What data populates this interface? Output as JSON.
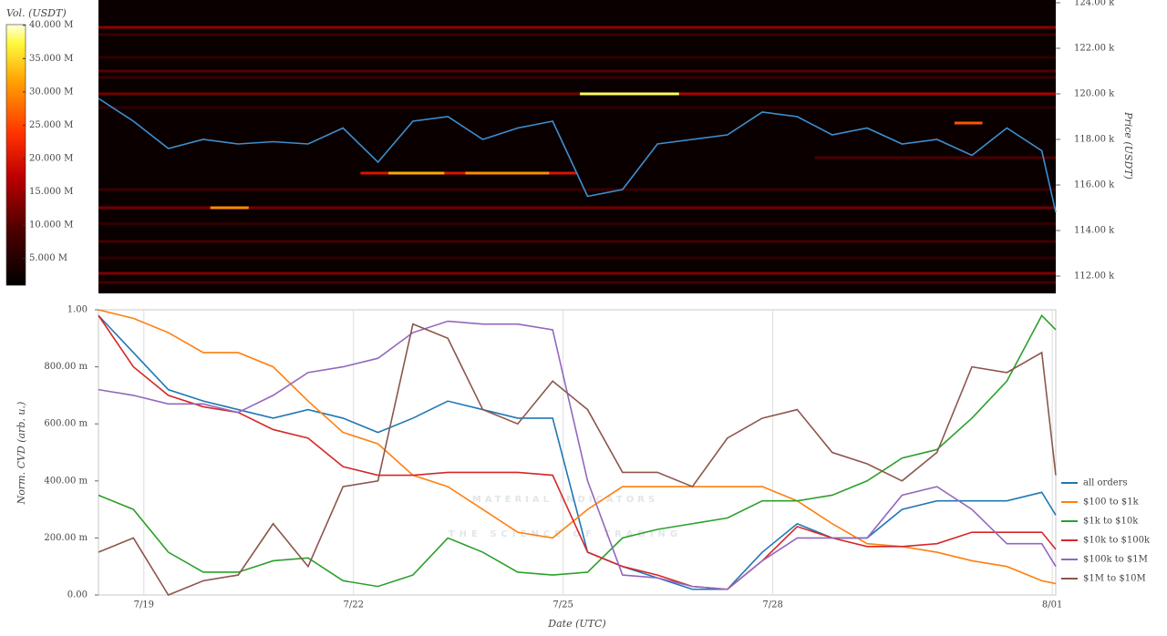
{
  "chart_data": [
    {
      "type": "heatmap",
      "y_label": "Price (USDT)",
      "colorbar_label": "Vol. (USDT)",
      "x": [
        18.35,
        18.85,
        19.35,
        19.85,
        20.35,
        20.85,
        21.35,
        21.85,
        22.35,
        22.85,
        23.35,
        23.85,
        24.35,
        24.85,
        25.35,
        25.85,
        26.35,
        26.85,
        27.35,
        27.85,
        28.35,
        28.85,
        29.35,
        29.85,
        30.35,
        30.85,
        31.35,
        31.85,
        32.05
      ],
      "xlim": [
        18.35,
        32.05
      ],
      "ylim": [
        111240,
        124120
      ],
      "yticks": [
        {
          "value": 112000,
          "label": "112.00 k"
        },
        {
          "value": 114000,
          "label": "114.00 k"
        },
        {
          "value": 116000,
          "label": "116.00 k"
        },
        {
          "value": 118000,
          "label": "118.00 k"
        },
        {
          "value": 120000,
          "label": "120.00 k"
        },
        {
          "value": 122000,
          "label": "122.00 k"
        },
        {
          "value": 124000,
          "label": "124.00 k"
        }
      ],
      "clim": [
        1000000,
        40100000
      ],
      "cticks": [
        {
          "value": 5000000,
          "label": "5.000 M"
        },
        {
          "value": 10000000,
          "label": "10.000 M"
        },
        {
          "value": 15000000,
          "label": "15.000 M"
        },
        {
          "value": 20000000,
          "label": "20.000 M"
        },
        {
          "value": 25000000,
          "label": "25.000 M"
        },
        {
          "value": 30000000,
          "label": "30.000 M"
        },
        {
          "value": 35000000,
          "label": "35.000 M"
        },
        {
          "value": 40000000,
          "label": "40.000 M"
        }
      ],
      "price_line": {
        "color": "#3d8fd1",
        "values": [
          119800,
          118800,
          117600,
          118000,
          117800,
          117900,
          117800,
          118500,
          117000,
          118800,
          119000,
          118000,
          118500,
          118800,
          115500,
          115800,
          117800,
          118000,
          118200,
          119200,
          119000,
          118200,
          118500,
          117800,
          118000,
          117300,
          118500,
          117500,
          114800
        ]
      },
      "bands": [
        {
          "price": 122920,
          "start": 18.35,
          "end": 32.05,
          "volume": 14000000
        },
        {
          "price": 122600,
          "start": 18.35,
          "end": 32.05,
          "volume": 7000000
        },
        {
          "price": 121600,
          "start": 18.35,
          "end": 32.05,
          "volume": 6000000
        },
        {
          "price": 121000,
          "start": 18.35,
          "end": 32.05,
          "volume": 10000000
        },
        {
          "price": 120720,
          "start": 18.35,
          "end": 32.05,
          "volume": 7000000
        },
        {
          "price": 120000,
          "start": 18.35,
          "end": 25.24,
          "volume": 12000000
        },
        {
          "price": 120000,
          "start": 25.24,
          "end": 26.66,
          "volume": 38000000
        },
        {
          "price": 120000,
          "start": 26.66,
          "end": 32.05,
          "volume": 16000000
        },
        {
          "price": 119400,
          "start": 18.35,
          "end": 32.05,
          "volume": 6000000
        },
        {
          "price": 118720,
          "start": 30.6,
          "end": 31.0,
          "volume": 26000000
        },
        {
          "price": 117200,
          "start": 28.6,
          "end": 32.05,
          "volume": 9000000
        },
        {
          "price": 116520,
          "start": 22.1,
          "end": 25.2,
          "volume": 20000000
        },
        {
          "price": 116520,
          "start": 22.5,
          "end": 23.3,
          "volume": 32000000
        },
        {
          "price": 116520,
          "start": 23.6,
          "end": 24.8,
          "volume": 30000000
        },
        {
          "price": 115800,
          "start": 18.35,
          "end": 32.05,
          "volume": 7000000
        },
        {
          "price": 115000,
          "start": 18.35,
          "end": 32.05,
          "volume": 12000000
        },
        {
          "price": 115000,
          "start": 19.95,
          "end": 20.5,
          "volume": 30000000
        },
        {
          "price": 114300,
          "start": 18.35,
          "end": 32.05,
          "volume": 6000000
        },
        {
          "price": 113520,
          "start": 18.35,
          "end": 32.05,
          "volume": 8000000
        },
        {
          "price": 112800,
          "start": 18.35,
          "end": 32.05,
          "volume": 6000000
        },
        {
          "price": 112120,
          "start": 18.35,
          "end": 32.05,
          "volume": 13000000
        },
        {
          "price": 111720,
          "start": 18.35,
          "end": 32.05,
          "volume": 8000000
        }
      ]
    },
    {
      "type": "line",
      "y_label": "Norm. CVD (arb. u.)",
      "x_label": "Date (UTC)",
      "watermark": [
        "MATERIAL INDICATORS",
        "THE SCIENCE OF TRADING"
      ],
      "x": [
        18.35,
        18.85,
        19.35,
        19.85,
        20.35,
        20.85,
        21.35,
        21.85,
        22.35,
        22.85,
        23.35,
        23.85,
        24.35,
        24.85,
        25.35,
        25.85,
        26.35,
        26.85,
        27.35,
        27.85,
        28.35,
        28.85,
        29.35,
        29.85,
        30.35,
        30.85,
        31.35,
        31.85,
        32.05
      ],
      "xlim": [
        18.35,
        32.05
      ],
      "xticks": [
        {
          "value": 19,
          "label": "7/19"
        },
        {
          "value": 22,
          "label": "7/22"
        },
        {
          "value": 25,
          "label": "7/25"
        },
        {
          "value": 28,
          "label": "7/28"
        },
        {
          "value": 32,
          "label": "8/01"
        }
      ],
      "ylim": [
        0,
        1
      ],
      "yticks": [
        {
          "value": 0,
          "label": "0.00"
        },
        {
          "value": 0.2,
          "label": "200.00 m"
        },
        {
          "value": 0.4,
          "label": "400.00 m"
        },
        {
          "value": 0.6,
          "label": "600.00 m"
        },
        {
          "value": 0.8,
          "label": "800.00 m"
        },
        {
          "value": 1,
          "label": "1.00"
        }
      ],
      "grid": true,
      "series": [
        {
          "name": "all orders",
          "color": "#1f77b4",
          "values": [
            0.98,
            0.85,
            0.72,
            0.68,
            0.65,
            0.62,
            0.65,
            0.62,
            0.57,
            0.62,
            0.68,
            0.65,
            0.62,
            0.62,
            0.15,
            0.1,
            0.06,
            0.02,
            0.02,
            0.15,
            0.25,
            0.2,
            0.2,
            0.3,
            0.33,
            0.33,
            0.33,
            0.36,
            0.28
          ]
        },
        {
          "name": "$100 to $1k",
          "color": "#ff7f0e",
          "values": [
            1.0,
            0.97,
            0.92,
            0.85,
            0.85,
            0.8,
            0.68,
            0.57,
            0.53,
            0.42,
            0.38,
            0.3,
            0.22,
            0.2,
            0.3,
            0.38,
            0.38,
            0.38,
            0.38,
            0.38,
            0.33,
            0.25,
            0.18,
            0.17,
            0.15,
            0.12,
            0.1,
            0.05,
            0.04
          ]
        },
        {
          "name": "$1k to $10k",
          "color": "#2ca02c",
          "values": [
            0.35,
            0.3,
            0.15,
            0.08,
            0.08,
            0.12,
            0.13,
            0.05,
            0.03,
            0.07,
            0.2,
            0.15,
            0.08,
            0.07,
            0.08,
            0.2,
            0.23,
            0.25,
            0.27,
            0.33,
            0.33,
            0.35,
            0.4,
            0.48,
            0.51,
            0.62,
            0.75,
            0.98,
            0.93
          ]
        },
        {
          "name": "$10k to $100k",
          "color": "#d62728",
          "values": [
            0.98,
            0.8,
            0.7,
            0.66,
            0.64,
            0.58,
            0.55,
            0.45,
            0.42,
            0.42,
            0.43,
            0.43,
            0.43,
            0.42,
            0.15,
            0.1,
            0.07,
            0.03,
            0.02,
            0.12,
            0.24,
            0.2,
            0.17,
            0.17,
            0.18,
            0.22,
            0.22,
            0.22,
            0.16
          ]
        },
        {
          "name": "$100k to $1M",
          "color": "#9467bd",
          "values": [
            0.72,
            0.7,
            0.67,
            0.67,
            0.64,
            0.7,
            0.78,
            0.8,
            0.83,
            0.92,
            0.96,
            0.95,
            0.95,
            0.93,
            0.4,
            0.07,
            0.06,
            0.03,
            0.02,
            0.12,
            0.2,
            0.2,
            0.2,
            0.35,
            0.38,
            0.3,
            0.18,
            0.18,
            0.1
          ]
        },
        {
          "name": "$1M to $10M",
          "color": "#8c564b",
          "values": [
            0.15,
            0.2,
            0.0,
            0.05,
            0.07,
            0.25,
            0.1,
            0.38,
            0.4,
            0.95,
            0.9,
            0.65,
            0.6,
            0.75,
            0.65,
            0.43,
            0.43,
            0.38,
            0.55,
            0.62,
            0.65,
            0.5,
            0.46,
            0.4,
            0.5,
            0.8,
            0.78,
            0.85,
            0.42
          ]
        }
      ]
    }
  ]
}
